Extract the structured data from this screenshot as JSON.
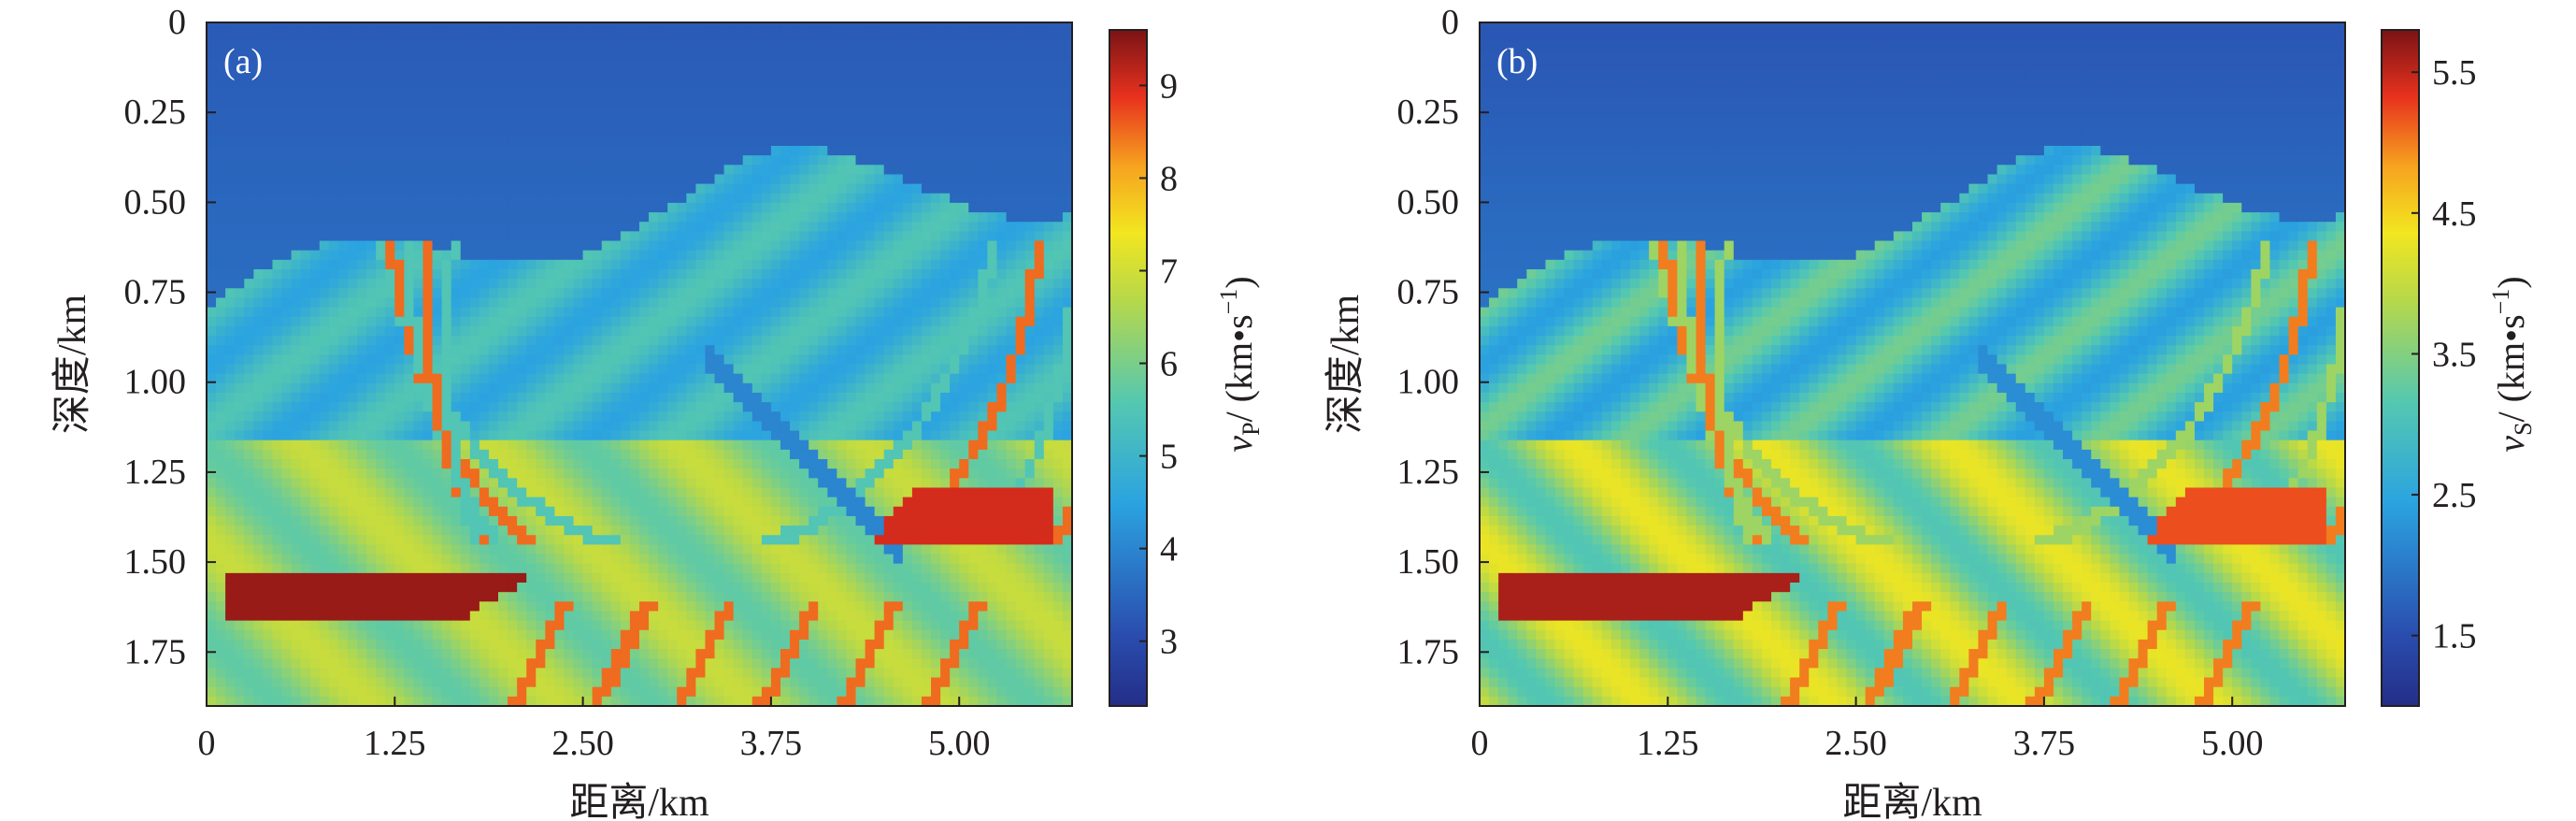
{
  "chart_data": [
    {
      "type": "heatmap",
      "panel_label": "(a)",
      "xlabel": "距离/km",
      "ylabel": "深度/km",
      "xlim": [
        0,
        5.75
      ],
      "ylim": [
        1.9,
        0
      ],
      "xticks": [
        "0",
        "1.25",
        "2.50",
        "3.75",
        "5.00"
      ],
      "xtick_values": [
        0,
        1.25,
        2.5,
        3.75,
        5.0
      ],
      "yticks": [
        "0",
        "0.25",
        "0.50",
        "0.75",
        "1.00",
        "1.25",
        "1.50",
        "1.75"
      ],
      "ytick_values": [
        0,
        0.25,
        0.5,
        0.75,
        1.0,
        1.25,
        1.5,
        1.75
      ],
      "colorbar": {
        "label_var": "v",
        "label_sub": "P",
        "label_rest": "/ (km•s",
        "label_sup": "−1",
        "label_close": ")",
        "ticks": [
          "3",
          "4",
          "5",
          "6",
          "7",
          "8",
          "9"
        ],
        "tick_values": [
          3,
          4,
          5,
          6,
          7,
          8,
          9
        ],
        "range": [
          2.3,
          9.6
        ],
        "colormap": "jet"
      },
      "features": {
        "water_layer_value": 3.3,
        "sediment_value": 5.0,
        "deep_value": 6.3,
        "salt_body_value": 9.4,
        "reflector_high": 8.5,
        "reflector_low": 4.0
      }
    },
    {
      "type": "heatmap",
      "panel_label": "(b)",
      "xlabel": "距离/km",
      "ylabel": "深度/km",
      "xlim": [
        0,
        5.75
      ],
      "ylim": [
        1.9,
        0
      ],
      "xticks": [
        "0",
        "1.25",
        "2.50",
        "3.75",
        "5.00"
      ],
      "xtick_values": [
        0,
        1.25,
        2.5,
        3.75,
        5.0
      ],
      "yticks": [
        "0",
        "0.25",
        "0.50",
        "0.75",
        "1.00",
        "1.25",
        "1.50",
        "1.75"
      ],
      "ytick_values": [
        0,
        0.25,
        0.5,
        0.75,
        1.0,
        1.25,
        1.5,
        1.75
      ],
      "colorbar": {
        "label_var": "v",
        "label_sub": "S",
        "label_rest": "/ (km•s",
        "label_sup": "−1",
        "label_close": ")",
        "ticks": [
          "1.5",
          "2.5",
          "3.5",
          "4.5",
          "5.5"
        ],
        "tick_values": [
          1.5,
          2.5,
          3.5,
          4.5,
          5.5
        ],
        "range": [
          1.0,
          5.8
        ],
        "colormap": "jet"
      },
      "features": {
        "water_layer_value": 1.6,
        "sediment_value": 2.9,
        "deep_value": 3.7,
        "salt_body_value": 5.6,
        "reflector_high": 5.0,
        "reflector_low": 2.2
      }
    }
  ]
}
